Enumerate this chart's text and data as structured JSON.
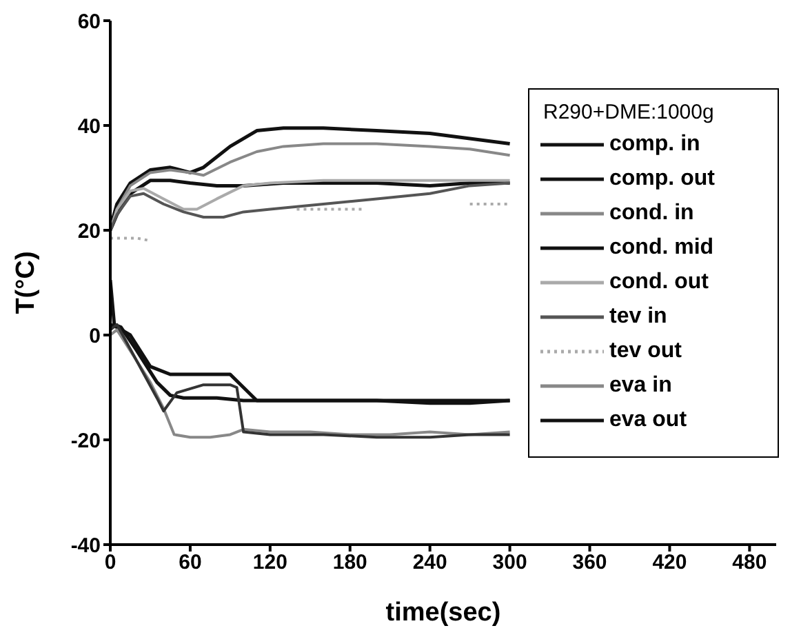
{
  "chart_data": {
    "type": "line",
    "xlabel": "time(sec)",
    "ylabel": "T(°C)",
    "legend_title": "R290+DME:1000g",
    "xlim": [
      0,
      500
    ],
    "ylim": [
      -40,
      60
    ],
    "xticks": [
      0,
      60,
      120,
      180,
      240,
      300,
      360,
      420,
      480
    ],
    "yticks": [
      -40,
      -20,
      0,
      20,
      40,
      60
    ],
    "legend": "right",
    "marker": "none",
    "line_style": "solid",
    "series": [
      {
        "name": "comp. in",
        "color": "#111111",
        "x": [
          0,
          5,
          15,
          30,
          45,
          70,
          90,
          110,
          130,
          160,
          200,
          240,
          270,
          300
        ],
        "values": [
          2,
          1.5,
          0,
          -6,
          -7.5,
          -7.5,
          -7.5,
          -12.5,
          -12.5,
          -12.5,
          -12.5,
          -12.5,
          -12.5,
          -12.5
        ]
      },
      {
        "name": "comp. out",
        "color": "#111111",
        "x": [
          0,
          5,
          15,
          30,
          45,
          60,
          70,
          90,
          110,
          130,
          160,
          200,
          240,
          270,
          300
        ],
        "values": [
          20.5,
          25,
          29,
          31.5,
          32,
          31,
          32,
          36,
          39,
          39.5,
          39.5,
          39,
          38.5,
          37.5,
          36.5
        ]
      },
      {
        "name": "cond. in",
        "color": "#888888",
        "x": [
          0,
          5,
          15,
          30,
          45,
          60,
          70,
          90,
          110,
          130,
          160,
          200,
          240,
          270,
          300
        ],
        "values": [
          20,
          24,
          28.5,
          31,
          31.5,
          31,
          30.5,
          33,
          35,
          36,
          36.5,
          36.5,
          36,
          35.5,
          34.3
        ]
      },
      {
        "name": "cond. mid",
        "color": "#111111",
        "x": [
          0,
          5,
          15,
          30,
          45,
          60,
          80,
          100,
          130,
          160,
          200,
          240,
          270,
          300
        ],
        "values": [
          20,
          23,
          27,
          29.5,
          29.5,
          29,
          28.5,
          28.5,
          29,
          29,
          29,
          28.5,
          29,
          29
        ]
      },
      {
        "name": "cond. out",
        "color": "#aaaaaa",
        "x": [
          0,
          5,
          15,
          25,
          40,
          55,
          65,
          80,
          100,
          120,
          160,
          200,
          240,
          270,
          300
        ],
        "values": [
          20,
          24,
          27.5,
          28,
          26,
          24,
          24,
          26,
          28.5,
          29,
          29.5,
          29.5,
          29.5,
          29.5,
          29.5
        ]
      },
      {
        "name": "tev in",
        "color": "#555555",
        "x": [
          0,
          5,
          15,
          25,
          40,
          55,
          70,
          85,
          100,
          120,
          160,
          200,
          240,
          270,
          300
        ],
        "values": [
          20,
          23,
          26.5,
          27,
          25,
          23.5,
          22.5,
          22.5,
          23.5,
          24,
          25,
          26,
          27,
          28.5,
          29
        ]
      },
      {
        "name": "tev out",
        "color": "#aaaaaa",
        "line_style": "dotted",
        "x": [
          0,
          10,
          20,
          30,
          40,
          140,
          165,
          190,
          200,
          270,
          285,
          300
        ],
        "values": [
          18.5,
          18.5,
          18.5,
          18,
          null,
          24,
          24,
          24,
          null,
          25,
          25,
          25
        ]
      },
      {
        "name": "eva in",
        "color": "#888888",
        "x": [
          0,
          5,
          15,
          30,
          40,
          48,
          60,
          75,
          90,
          100,
          120,
          150,
          180,
          210,
          240,
          270,
          300
        ],
        "values": [
          0,
          1,
          -3,
          -9,
          -14,
          -19,
          -19.5,
          -19.5,
          -19,
          -18,
          -18.5,
          -18.5,
          -19,
          -19,
          -18.5,
          -19,
          -18.5
        ]
      },
      {
        "name": "eva out",
        "color": "#111111",
        "x": [
          0,
          3,
          8,
          20,
          35,
          45,
          55,
          80,
          100,
          130,
          160,
          200,
          240,
          270,
          300
        ],
        "values": [
          10.5,
          2,
          1.5,
          -3,
          -9,
          -11.5,
          -12,
          -12,
          -12.5,
          -12.5,
          -12.5,
          -12.5,
          -13,
          -13,
          -12.5
        ]
      },
      {
        "color": "#333333",
        "x": [
          0,
          5,
          20,
          35,
          40,
          50,
          70,
          90,
          95,
          100,
          120,
          160,
          200,
          240,
          270,
          300
        ],
        "values": [
          1,
          2,
          -5,
          -12,
          -14.5,
          -11,
          -9.5,
          -9.5,
          -10,
          -18.5,
          -19,
          -19,
          -19.5,
          -19.5,
          -19,
          -19
        ]
      }
    ]
  }
}
